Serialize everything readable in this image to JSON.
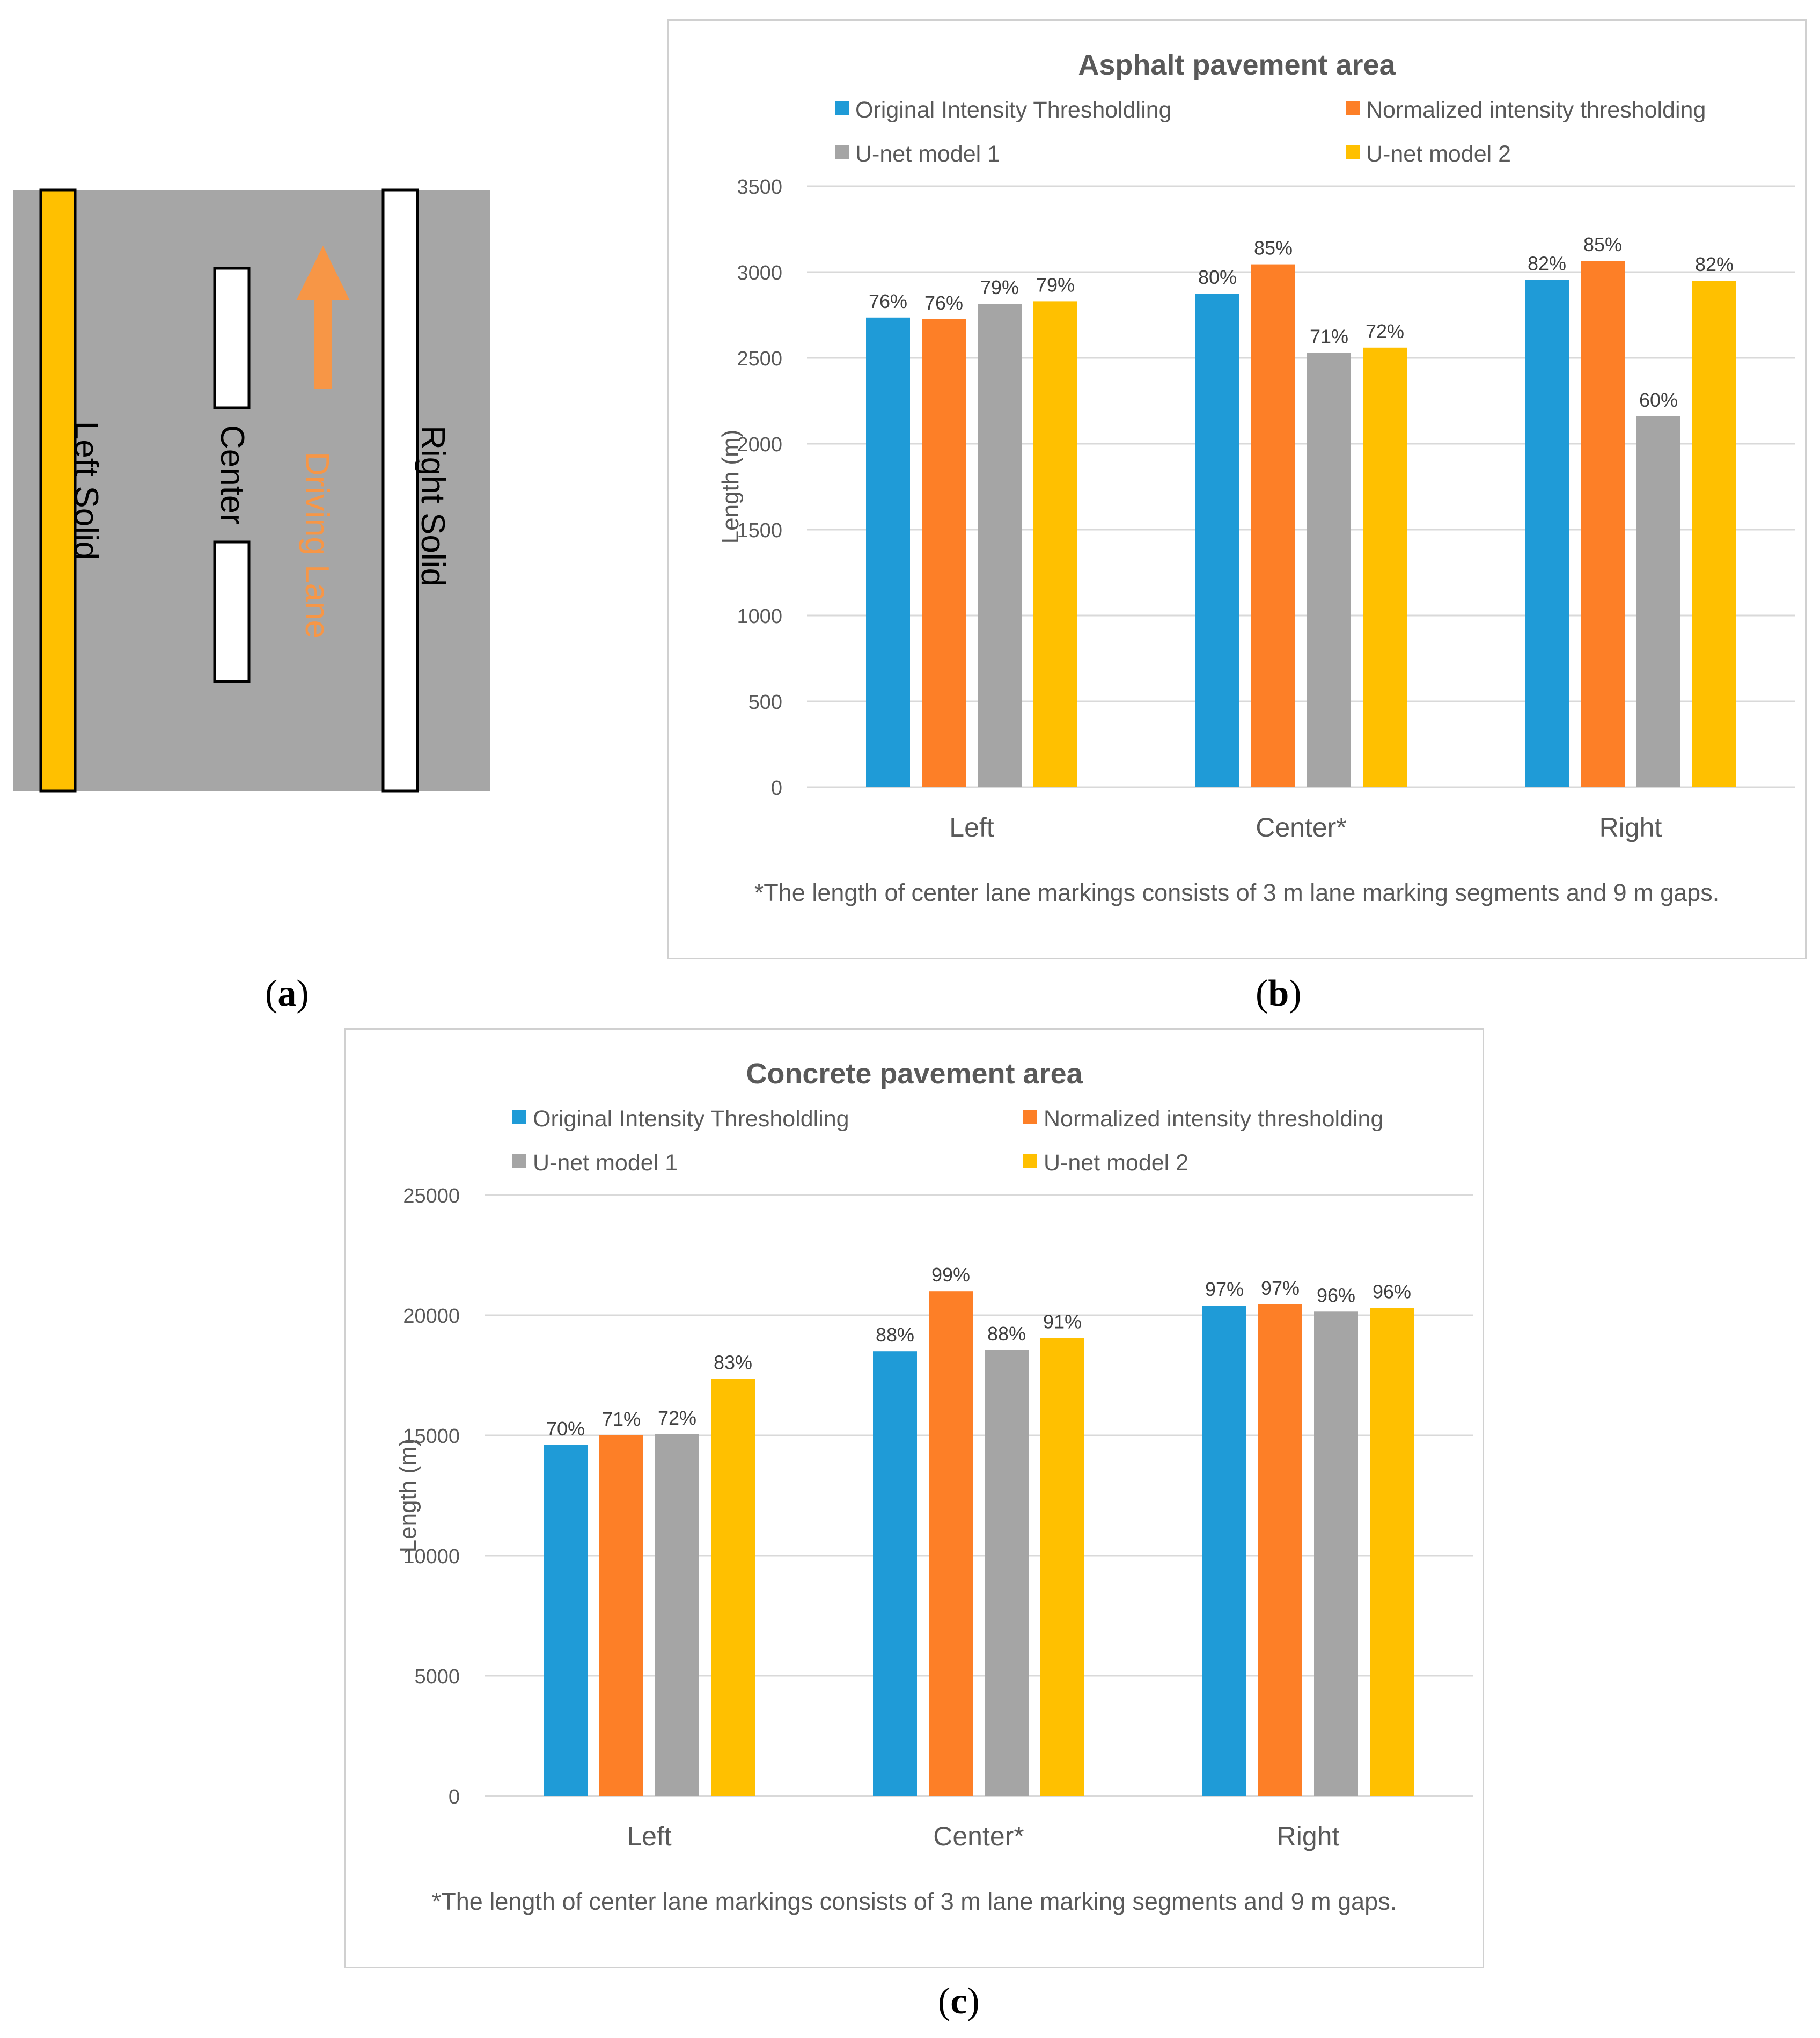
{
  "lane_diagram": {
    "left_label": "Left Solid",
    "center_label": "Center",
    "driving_label": "Driving Lane",
    "right_label": "Right Solid",
    "colors": {
      "road": "#a6a6a6",
      "yellow_line": "#ffc000",
      "white_line": "#ffffff",
      "arrow": "#f79646"
    }
  },
  "panel_labels": {
    "a": "a",
    "b": "b",
    "c": "c"
  },
  "chart_data": [
    {
      "type": "bar",
      "title": "Asphalt pavement area",
      "ylabel": "Length (m)",
      "xlabel": "",
      "categories": [
        "Left",
        "Center*",
        "Right"
      ],
      "ylim": [
        0,
        3500
      ],
      "yticks": [
        0,
        500,
        1000,
        1500,
        2000,
        2500,
        3000,
        3500
      ],
      "grid": true,
      "legend_position": "top",
      "series": [
        {
          "name": "Original Intensity Thresholdling",
          "color": "#1f9bd7",
          "values": [
            2735,
            2875,
            2955
          ],
          "labels": [
            "76%",
            "80%",
            "82%"
          ]
        },
        {
          "name": "Normalized intensity thresholding",
          "color": "#fd7f27",
          "values": [
            2725,
            3045,
            3065
          ],
          "labels": [
            "76%",
            "85%",
            "85%"
          ]
        },
        {
          "name": "U-net model 1",
          "color": "#a5a5a5",
          "values": [
            2815,
            2530,
            2160
          ],
          "labels": [
            "79%",
            "71%",
            "60%"
          ]
        },
        {
          "name": "U-net model 2",
          "color": "#ffc000",
          "values": [
            2830,
            2560,
            2950
          ],
          "labels": [
            "79%",
            "72%",
            "82%"
          ]
        }
      ],
      "footnote": "*The length of center lane markings consists of 3 m lane marking segments and 9 m gaps."
    },
    {
      "type": "bar",
      "title": "Concrete pavement area",
      "ylabel": "Length (m)",
      "xlabel": "",
      "categories": [
        "Left",
        "Center*",
        "Right"
      ],
      "ylim": [
        0,
        25000
      ],
      "yticks": [
        0,
        5000,
        10000,
        15000,
        20000,
        25000
      ],
      "grid": true,
      "legend_position": "top",
      "series": [
        {
          "name": "Original Intensity Thresholdling",
          "color": "#1f9bd7",
          "values": [
            14600,
            18500,
            20400
          ],
          "labels": [
            "70%",
            "88%",
            "97%"
          ]
        },
        {
          "name": "Normalized intensity thresholding",
          "color": "#fd7f27",
          "values": [
            15000,
            21000,
            20450
          ],
          "labels": [
            "71%",
            "99%",
            "97%"
          ]
        },
        {
          "name": "U-net model 1",
          "color": "#a5a5a5",
          "values": [
            15050,
            18550,
            20150
          ],
          "labels": [
            "72%",
            "88%",
            "96%"
          ]
        },
        {
          "name": "U-net model 2",
          "color": "#ffc000",
          "values": [
            17350,
            19050,
            20300
          ],
          "labels": [
            "83%",
            "91%",
            "96%"
          ]
        }
      ],
      "footnote": "*The length of center lane markings consists of 3 m lane marking segments and 9 m gaps."
    }
  ]
}
